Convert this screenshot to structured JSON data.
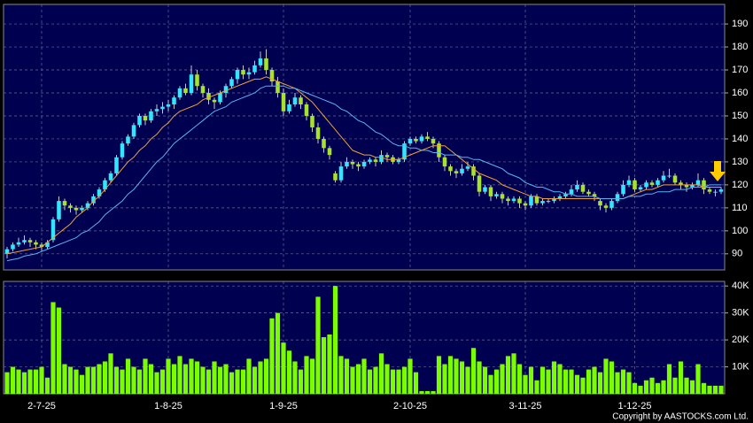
{
  "chart_data": {
    "type": "candlestick",
    "categories": [
      null,
      null,
      null,
      null,
      null,
      null,
      "2-7-25",
      null,
      null,
      null,
      null,
      null,
      null,
      null,
      null,
      null,
      null,
      null,
      null,
      null,
      null,
      null,
      null,
      null,
      null,
      null,
      null,
      null,
      "1-8-25",
      null,
      null,
      null,
      null,
      null,
      null,
      null,
      null,
      null,
      null,
      null,
      null,
      null,
      null,
      null,
      null,
      null,
      null,
      null,
      "1-9-25",
      null,
      null,
      null,
      null,
      null,
      null,
      null,
      null,
      null,
      null,
      null,
      null,
      null,
      null,
      null,
      null,
      null,
      null,
      null,
      null,
      null,
      "2-10-25",
      null,
      null,
      null,
      null,
      null,
      null,
      null,
      null,
      null,
      null,
      null,
      null,
      null,
      null,
      null,
      null,
      null,
      null,
      null,
      "3-11-25",
      null,
      null,
      null,
      null,
      null,
      null,
      null,
      null,
      null,
      null,
      null,
      null,
      null,
      null,
      null,
      null,
      null,
      null,
      "1-12-25",
      null,
      null,
      null,
      null,
      null,
      null,
      null,
      null,
      null,
      null,
      null,
      null,
      null,
      null,
      null
    ],
    "ohlc": [
      [
        90,
        93,
        88,
        92
      ],
      [
        92,
        95,
        91,
        94
      ],
      [
        94,
        97,
        93,
        95
      ],
      [
        95,
        98,
        94,
        96
      ],
      [
        96,
        97,
        93,
        95
      ],
      [
        95,
        96,
        92,
        94
      ],
      [
        94,
        95,
        91,
        93
      ],
      [
        93,
        96,
        92,
        95
      ],
      [
        96,
        106,
        95,
        105
      ],
      [
        105,
        115,
        104,
        113
      ],
      [
        113,
        114,
        109,
        111
      ],
      [
        111,
        112,
        108,
        110
      ],
      [
        110,
        111,
        107,
        109
      ],
      [
        109,
        111,
        108,
        110
      ],
      [
        110,
        113,
        109,
        112
      ],
      [
        112,
        116,
        111,
        115
      ],
      [
        115,
        119,
        114,
        118
      ],
      [
        118,
        123,
        117,
        122
      ],
      [
        122,
        126,
        121,
        125
      ],
      [
        125,
        133,
        124,
        132
      ],
      [
        132,
        139,
        131,
        138
      ],
      [
        138,
        142,
        137,
        141
      ],
      [
        141,
        147,
        140,
        146
      ],
      [
        146,
        151,
        145,
        150
      ],
      [
        150,
        151,
        146,
        148
      ],
      [
        148,
        153,
        147,
        152
      ],
      [
        152,
        155,
        150,
        153
      ],
      [
        153,
        156,
        151,
        154
      ],
      [
        154,
        157,
        152,
        155
      ],
      [
        155,
        159,
        153,
        158
      ],
      [
        158,
        163,
        157,
        162
      ],
      [
        162,
        164,
        159,
        160
      ],
      [
        160,
        172,
        159,
        168
      ],
      [
        168,
        170,
        161,
        163
      ],
      [
        163,
        164,
        158,
        160
      ],
      [
        160,
        162,
        155,
        157
      ],
      [
        157,
        158,
        153,
        156
      ],
      [
        156,
        161,
        155,
        160
      ],
      [
        160,
        164,
        158,
        163
      ],
      [
        163,
        167,
        162,
        166
      ],
      [
        166,
        171,
        164,
        170
      ],
      [
        170,
        172,
        166,
        168
      ],
      [
        168,
        171,
        166,
        169
      ],
      [
        169,
        174,
        168,
        172
      ],
      [
        172,
        178,
        171,
        175
      ],
      [
        175,
        179,
        168,
        170
      ],
      [
        170,
        171,
        163,
        165
      ],
      [
        165,
        167,
        158,
        160
      ],
      [
        160,
        162,
        150,
        152
      ],
      [
        152,
        157,
        151,
        155
      ],
      [
        155,
        160,
        154,
        158
      ],
      [
        158,
        159,
        153,
        155
      ],
      [
        155,
        156,
        148,
        150
      ],
      [
        150,
        151,
        143,
        145
      ],
      [
        145,
        147,
        138,
        140
      ],
      [
        140,
        141,
        134,
        136
      ],
      [
        136,
        137,
        131,
        133
      ],
      [
        125,
        126,
        121,
        122
      ],
      [
        122,
        130,
        121,
        128
      ],
      [
        128,
        132,
        127,
        130
      ],
      [
        130,
        131,
        127,
        129
      ],
      [
        129,
        130,
        126,
        128
      ],
      [
        128,
        131,
        127,
        130
      ],
      [
        130,
        132,
        129,
        131
      ],
      [
        131,
        132,
        128,
        130
      ],
      [
        130,
        135,
        129,
        133
      ],
      [
        133,
        134,
        130,
        132
      ],
      [
        132,
        133,
        129,
        130
      ],
      [
        130,
        132,
        129,
        131
      ],
      [
        131,
        139,
        130,
        138
      ],
      [
        138,
        141,
        137,
        140
      ],
      [
        140,
        141,
        138,
        139
      ],
      [
        139,
        142,
        138,
        141
      ],
      [
        141,
        143,
        139,
        140
      ],
      [
        140,
        141,
        136,
        138
      ],
      [
        138,
        139,
        130,
        132
      ],
      [
        132,
        133,
        126,
        128
      ],
      [
        128,
        129,
        124,
        126
      ],
      [
        126,
        127,
        123,
        125
      ],
      [
        125,
        129,
        124,
        127
      ],
      [
        127,
        130,
        126,
        128
      ],
      [
        128,
        129,
        122,
        124
      ],
      [
        124,
        125,
        115,
        117
      ],
      [
        117,
        120,
        116,
        119
      ],
      [
        119,
        120,
        113,
        115
      ],
      [
        115,
        117,
        114,
        116
      ],
      [
        116,
        117,
        112,
        114
      ],
      [
        114,
        115,
        111,
        113
      ],
      [
        113,
        115,
        112,
        114
      ],
      [
        114,
        115,
        110,
        112
      ],
      [
        112,
        113,
        109,
        111
      ],
      [
        111,
        116,
        110,
        115
      ],
      [
        115,
        116,
        111,
        112
      ],
      [
        112,
        114,
        111,
        113
      ],
      [
        113,
        114,
        112,
        113
      ],
      [
        113,
        115,
        112,
        114
      ],
      [
        114,
        116,
        113,
        115
      ],
      [
        115,
        117,
        114,
        116
      ],
      [
        116,
        120,
        115,
        118
      ],
      [
        118,
        122,
        117,
        120
      ],
      [
        120,
        121,
        116,
        117
      ],
      [
        117,
        118,
        115,
        116
      ],
      [
        116,
        117,
        113,
        115
      ],
      [
        113,
        114,
        109,
        111
      ],
      [
        111,
        112,
        108,
        110
      ],
      [
        110,
        114,
        109,
        113
      ],
      [
        113,
        117,
        112,
        116
      ],
      [
        116,
        122,
        115,
        120
      ],
      [
        120,
        124,
        119,
        122
      ],
      [
        122,
        123,
        117,
        118
      ],
      [
        118,
        120,
        117,
        119
      ],
      [
        119,
        122,
        118,
        121
      ],
      [
        121,
        122,
        119,
        120
      ],
      [
        120,
        123,
        119,
        122
      ],
      [
        122,
        126,
        121,
        124
      ],
      [
        124,
        127,
        123,
        124
      ],
      [
        124,
        125,
        120,
        121
      ],
      [
        121,
        122,
        118,
        120
      ],
      [
        120,
        121,
        117,
        119
      ],
      [
        119,
        121,
        118,
        120
      ],
      [
        120,
        125,
        119,
        122
      ],
      [
        122,
        123,
        116,
        118
      ],
      [
        118,
        119,
        116,
        117
      ],
      [
        117,
        118,
        115,
        117
      ],
      [
        117,
        119,
        116,
        118
      ]
    ],
    "up_color": "#33e6ff",
    "down_color": "#a6e22e",
    "moving_averages": [
      {
        "color": "#f0a030",
        "values": [
          90,
          90.5,
          91,
          91.5,
          92,
          92.5,
          93,
          95,
          97,
          99,
          101,
          103,
          106,
          108,
          110,
          113,
          115,
          118,
          121,
          124,
          127,
          130,
          132,
          135,
          137,
          140,
          142,
          145,
          147,
          150,
          152,
          153,
          154,
          155,
          157,
          158,
          159,
          160,
          161,
          162,
          163,
          164,
          165,
          166,
          166,
          167,
          166,
          165,
          164,
          163,
          162,
          160,
          158,
          156,
          153,
          150,
          147,
          144,
          141,
          138,
          135,
          134,
          133,
          133,
          132,
          132,
          131,
          131,
          131,
          132,
          133,
          134,
          135,
          136,
          137,
          137,
          137,
          135,
          133,
          131,
          129,
          127,
          125,
          124,
          123,
          122,
          120,
          119,
          118,
          117,
          116,
          115,
          115,
          114,
          114,
          114,
          114,
          114,
          114,
          114,
          114,
          114,
          114,
          114,
          114,
          114,
          114,
          114,
          115,
          116,
          117,
          118,
          118,
          119,
          120,
          120,
          120,
          120,
          120,
          120,
          120,
          119,
          119,
          119,
          119
        ]
      },
      {
        "color": "#5ab4f0",
        "values": [
          87,
          87.5,
          88,
          89,
          89.5,
          90,
          91,
          92,
          93,
          94,
          95,
          96,
          97,
          99,
          100,
          102,
          104,
          107,
          109,
          111,
          113,
          116,
          118,
          121,
          124,
          127,
          130,
          132,
          135,
          138,
          140,
          142,
          144,
          146,
          148,
          150,
          152,
          153,
          154,
          156,
          157,
          158,
          159,
          160,
          162,
          163,
          163,
          163,
          163,
          162,
          162,
          161,
          160,
          159,
          158,
          157,
          156,
          155,
          153,
          152,
          150,
          148,
          147,
          145,
          143,
          142,
          140,
          138,
          137,
          137,
          136,
          136,
          135,
          135,
          134,
          134,
          133,
          133,
          133,
          132,
          132,
          131,
          131,
          130,
          129,
          128,
          127,
          125,
          124,
          123,
          121,
          120,
          119,
          119,
          118,
          117,
          117,
          116,
          116,
          115,
          115,
          115,
          115,
          114,
          114,
          114,
          114,
          114,
          115,
          115,
          115,
          116,
          116,
          117,
          117,
          117,
          118,
          118,
          118,
          119,
          119,
          119,
          120,
          120,
          120
        ]
      }
    ],
    "ylim": [
      83,
      198.5
    ],
    "yticks": [
      90,
      100,
      110,
      120,
      130,
      140,
      150,
      160,
      170,
      180,
      190
    ],
    "grid": true,
    "volume": {
      "color": "#7cfc00",
      "values": [
        8000,
        10000,
        9000,
        8000,
        9000,
        9000,
        10000,
        6000,
        34000,
        32000,
        11000,
        10000,
        9000,
        7000,
        10000,
        10000,
        11000,
        12000,
        15000,
        10000,
        9000,
        13000,
        10000,
        9000,
        13000,
        11000,
        8000,
        9000,
        13000,
        11000,
        14000,
        11000,
        13000,
        12000,
        10000,
        9000,
        12000,
        10000,
        11000,
        8000,
        9000,
        9000,
        13000,
        10000,
        12000,
        13000,
        28000,
        30000,
        19000,
        16000,
        12000,
        9000,
        14000,
        13000,
        36000,
        21000,
        22000,
        40000,
        14000,
        13000,
        10000,
        11000,
        13000,
        9000,
        10000,
        15000,
        11000,
        9000,
        9000,
        10000,
        13000,
        8000,
        1000,
        1000,
        1000,
        14000,
        11000,
        14000,
        13000,
        12000,
        10000,
        17000,
        12000,
        10000,
        7000,
        9000,
        11000,
        14000,
        15000,
        11000,
        7000,
        10000,
        5000,
        10000,
        9000,
        12000,
        11000,
        9000,
        9000,
        7000,
        6000,
        9000,
        10000,
        8000,
        13000,
        12000,
        8000,
        9000,
        8000,
        4000,
        3000,
        5000,
        6000,
        4000,
        5000,
        11000,
        6000,
        12000,
        6000,
        5000,
        11000,
        4000,
        3000,
        3000,
        3000
      ],
      "ylim": [
        0,
        41700
      ],
      "yticks": [
        {
          "value": 10000,
          "label": "10K"
        },
        {
          "value": 20000,
          "label": "20K"
        },
        {
          "value": 30000,
          "label": "30K"
        },
        {
          "value": 40000,
          "label": "40K"
        }
      ]
    },
    "copyright": "Copyright by AASTOCKS.com Ltd."
  }
}
